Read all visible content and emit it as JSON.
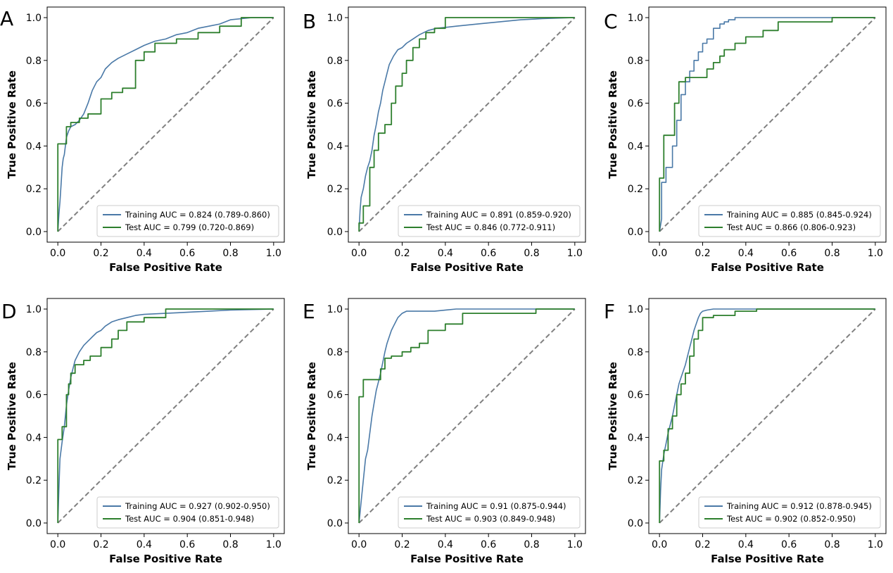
{
  "colors": {
    "training": "#4a79a7",
    "test": "#2d7f2d",
    "diagonal": "#808080",
    "frame": "#000000",
    "legend_border": "#cccccc"
  },
  "chart_data": [
    {
      "type": "line",
      "panel_label": "A",
      "xlabel": "False Positive Rate",
      "ylabel": "True Positive Rate",
      "xlim": [
        0,
        1
      ],
      "ylim": [
        0,
        1
      ],
      "xticks": [
        "0.0",
        "0.2",
        "0.4",
        "0.6",
        "0.8",
        "1.0"
      ],
      "yticks": [
        "0.0",
        "0.2",
        "0.4",
        "0.6",
        "0.8",
        "1.0"
      ],
      "legend_position": "lower-right",
      "series": [
        {
          "name": "Training AUC = 0.824 (0.789-0.860)",
          "role": "training",
          "x": [
            0,
            0.005,
            0.01,
            0.015,
            0.02,
            0.025,
            0.03,
            0.04,
            0.05,
            0.06,
            0.08,
            0.1,
            0.12,
            0.14,
            0.16,
            0.18,
            0.2,
            0.22,
            0.25,
            0.28,
            0.32,
            0.36,
            0.4,
            0.45,
            0.5,
            0.55,
            0.6,
            0.65,
            0.7,
            0.75,
            0.8,
            0.9,
            1.0
          ],
          "y": [
            0,
            0.08,
            0.14,
            0.22,
            0.3,
            0.34,
            0.36,
            0.44,
            0.47,
            0.49,
            0.5,
            0.52,
            0.55,
            0.6,
            0.66,
            0.7,
            0.72,
            0.76,
            0.79,
            0.81,
            0.83,
            0.85,
            0.87,
            0.89,
            0.9,
            0.92,
            0.93,
            0.95,
            0.96,
            0.97,
            0.99,
            1.0,
            1.0
          ]
        },
        {
          "name": "Test AUC = 0.799 (0.720-0.869)",
          "role": "test",
          "x": [
            0,
            0,
            0.04,
            0.04,
            0.06,
            0.06,
            0.1,
            0.1,
            0.14,
            0.14,
            0.2,
            0.2,
            0.25,
            0.25,
            0.3,
            0.3,
            0.36,
            0.36,
            0.4,
            0.4,
            0.45,
            0.45,
            0.55,
            0.55,
            0.65,
            0.65,
            0.75,
            0.75,
            0.85,
            0.85,
            1.0
          ],
          "y": [
            0,
            0.41,
            0.41,
            0.49,
            0.49,
            0.51,
            0.51,
            0.53,
            0.53,
            0.55,
            0.55,
            0.62,
            0.62,
            0.65,
            0.65,
            0.67,
            0.67,
            0.8,
            0.8,
            0.84,
            0.84,
            0.88,
            0.88,
            0.9,
            0.9,
            0.93,
            0.93,
            0.96,
            0.96,
            1.0,
            1.0
          ]
        }
      ]
    },
    {
      "type": "line",
      "panel_label": "B",
      "xlabel": "False Positive Rate",
      "ylabel": "True Positive Rate",
      "xlim": [
        0,
        1
      ],
      "ylim": [
        0,
        1
      ],
      "xticks": [
        "0.0",
        "0.2",
        "0.4",
        "0.6",
        "0.8",
        "1.0"
      ],
      "yticks": [
        "0.0",
        "0.2",
        "0.4",
        "0.6",
        "0.8",
        "1.0"
      ],
      "legend_position": "lower-right",
      "series": [
        {
          "name": "Training AUC = 0.891 (0.859-0.920)",
          "role": "training",
          "x": [
            0,
            0.005,
            0.01,
            0.02,
            0.03,
            0.04,
            0.05,
            0.06,
            0.07,
            0.08,
            0.09,
            0.1,
            0.11,
            0.12,
            0.13,
            0.14,
            0.16,
            0.18,
            0.2,
            0.22,
            0.25,
            0.28,
            0.32,
            0.36,
            0.45,
            0.55,
            0.65,
            0.75,
            0.85,
            1.0
          ],
          "y": [
            0,
            0.1,
            0.16,
            0.2,
            0.26,
            0.3,
            0.33,
            0.38,
            0.45,
            0.5,
            0.56,
            0.6,
            0.66,
            0.7,
            0.74,
            0.78,
            0.82,
            0.85,
            0.86,
            0.88,
            0.9,
            0.92,
            0.94,
            0.95,
            0.96,
            0.97,
            0.98,
            0.99,
            0.995,
            1.0
          ]
        },
        {
          "name": "Test AUC = 0.846 (0.772-0.911)",
          "role": "test",
          "x": [
            0,
            0,
            0.02,
            0.02,
            0.05,
            0.05,
            0.07,
            0.07,
            0.09,
            0.09,
            0.12,
            0.12,
            0.15,
            0.15,
            0.17,
            0.17,
            0.2,
            0.2,
            0.22,
            0.22,
            0.25,
            0.25,
            0.28,
            0.28,
            0.31,
            0.31,
            0.35,
            0.35,
            0.4,
            0.4,
            1.0
          ],
          "y": [
            0,
            0.04,
            0.04,
            0.12,
            0.12,
            0.3,
            0.3,
            0.38,
            0.38,
            0.46,
            0.46,
            0.5,
            0.5,
            0.6,
            0.6,
            0.68,
            0.68,
            0.74,
            0.74,
            0.8,
            0.8,
            0.86,
            0.86,
            0.9,
            0.9,
            0.93,
            0.93,
            0.95,
            0.95,
            1.0,
            1.0
          ]
        }
      ]
    },
    {
      "type": "line",
      "panel_label": "C",
      "xlabel": "False Positive Rate",
      "ylabel": "True Positive Rate",
      "xlim": [
        0,
        1
      ],
      "ylim": [
        0,
        1
      ],
      "xticks": [
        "0.0",
        "0.2",
        "0.4",
        "0.6",
        "0.8",
        "1.0"
      ],
      "yticks": [
        "0.0",
        "0.2",
        "0.4",
        "0.6",
        "0.8",
        "1.0"
      ],
      "legend_position": "lower-right",
      "series": [
        {
          "name": "Training AUC = 0.885 (0.845-0.924)",
          "role": "training",
          "x": [
            0,
            0.01,
            0.01,
            0.03,
            0.03,
            0.06,
            0.06,
            0.08,
            0.08,
            0.1,
            0.1,
            0.12,
            0.12,
            0.14,
            0.14,
            0.16,
            0.16,
            0.18,
            0.18,
            0.2,
            0.2,
            0.22,
            0.22,
            0.25,
            0.25,
            0.28,
            0.28,
            0.3,
            0.3,
            0.32,
            0.32,
            0.35,
            0.35,
            1.0
          ],
          "y": [
            0,
            0.06,
            0.23,
            0.23,
            0.3,
            0.3,
            0.4,
            0.4,
            0.52,
            0.52,
            0.64,
            0.64,
            0.7,
            0.7,
            0.75,
            0.75,
            0.8,
            0.8,
            0.84,
            0.84,
            0.88,
            0.88,
            0.9,
            0.9,
            0.95,
            0.95,
            0.97,
            0.97,
            0.98,
            0.98,
            0.99,
            0.99,
            1.0,
            1.0
          ]
        },
        {
          "name": "Test AUC = 0.866 (0.806-0.923)",
          "role": "test",
          "x": [
            0,
            0,
            0.02,
            0.02,
            0.07,
            0.07,
            0.09,
            0.09,
            0.12,
            0.12,
            0.22,
            0.22,
            0.25,
            0.25,
            0.28,
            0.28,
            0.3,
            0.3,
            0.35,
            0.35,
            0.4,
            0.4,
            0.48,
            0.48,
            0.55,
            0.55,
            0.8,
            0.8,
            1.0
          ],
          "y": [
            0,
            0.25,
            0.25,
            0.45,
            0.45,
            0.6,
            0.6,
            0.7,
            0.7,
            0.72,
            0.72,
            0.76,
            0.76,
            0.79,
            0.79,
            0.82,
            0.82,
            0.85,
            0.85,
            0.88,
            0.88,
            0.91,
            0.91,
            0.94,
            0.94,
            0.98,
            0.98,
            1.0,
            1.0
          ]
        }
      ]
    },
    {
      "type": "line",
      "panel_label": "D",
      "xlabel": "False Positive Rate",
      "ylabel": "True Positive Rate",
      "xlim": [
        0,
        1
      ],
      "ylim": [
        0,
        1
      ],
      "xticks": [
        "0.0",
        "0.2",
        "0.4",
        "0.6",
        "0.8",
        "1.0"
      ],
      "yticks": [
        "0.0",
        "0.2",
        "0.4",
        "0.6",
        "0.8",
        "1.0"
      ],
      "legend_position": "lower-right",
      "series": [
        {
          "name": "Training AUC = 0.927 (0.902-0.950)",
          "role": "training",
          "x": [
            0,
            0.005,
            0.01,
            0.02,
            0.03,
            0.04,
            0.05,
            0.06,
            0.07,
            0.08,
            0.1,
            0.12,
            0.14,
            0.16,
            0.18,
            0.2,
            0.22,
            0.25,
            0.28,
            0.32,
            0.36,
            0.4,
            0.5,
            0.6,
            0.7,
            0.8,
            1.0
          ],
          "y": [
            0,
            0.16,
            0.3,
            0.38,
            0.45,
            0.55,
            0.62,
            0.68,
            0.72,
            0.76,
            0.8,
            0.83,
            0.85,
            0.87,
            0.89,
            0.9,
            0.92,
            0.94,
            0.95,
            0.96,
            0.97,
            0.975,
            0.98,
            0.985,
            0.99,
            0.995,
            1.0
          ]
        },
        {
          "name": "Test AUC = 0.904 (0.851-0.948)",
          "role": "test",
          "x": [
            0,
            0,
            0.02,
            0.02,
            0.04,
            0.04,
            0.05,
            0.05,
            0.06,
            0.06,
            0.08,
            0.08,
            0.12,
            0.12,
            0.15,
            0.15,
            0.2,
            0.2,
            0.25,
            0.25,
            0.28,
            0.28,
            0.32,
            0.32,
            0.4,
            0.4,
            0.5,
            0.5,
            1.0
          ],
          "y": [
            0,
            0.39,
            0.39,
            0.45,
            0.45,
            0.6,
            0.6,
            0.65,
            0.65,
            0.7,
            0.7,
            0.74,
            0.74,
            0.76,
            0.76,
            0.78,
            0.78,
            0.82,
            0.82,
            0.86,
            0.86,
            0.9,
            0.9,
            0.94,
            0.94,
            0.96,
            0.96,
            1.0,
            1.0
          ]
        }
      ]
    },
    {
      "type": "line",
      "panel_label": "E",
      "xlabel": "False Positive Rate",
      "ylabel": "True Positive Rate",
      "xlim": [
        0,
        1
      ],
      "ylim": [
        0,
        1
      ],
      "xticks": [
        "0.0",
        "0.2",
        "0.4",
        "0.6",
        "0.8",
        "1.0"
      ],
      "yticks": [
        "0.0",
        "0.2",
        "0.4",
        "0.6",
        "0.8",
        "1.0"
      ],
      "legend_position": "lower-right",
      "series": [
        {
          "name": "Training AUC = 0.91 (0.875-0.944)",
          "role": "training",
          "x": [
            0,
            0.01,
            0.02,
            0.03,
            0.04,
            0.05,
            0.06,
            0.07,
            0.08,
            0.09,
            0.1,
            0.11,
            0.12,
            0.13,
            0.14,
            0.15,
            0.16,
            0.17,
            0.18,
            0.2,
            0.22,
            0.25,
            0.3,
            0.35,
            0.45,
            0.6,
            0.8,
            1.0
          ],
          "y": [
            0,
            0.1,
            0.2,
            0.3,
            0.34,
            0.42,
            0.5,
            0.56,
            0.62,
            0.66,
            0.7,
            0.75,
            0.8,
            0.84,
            0.87,
            0.9,
            0.92,
            0.94,
            0.96,
            0.98,
            0.99,
            0.99,
            0.99,
            0.99,
            1.0,
            1.0,
            1.0,
            1.0
          ]
        },
        {
          "name": "Test AUC = 0.903 (0.849-0.948)",
          "role": "test",
          "x": [
            0,
            0,
            0.02,
            0.02,
            0.1,
            0.1,
            0.12,
            0.12,
            0.15,
            0.15,
            0.2,
            0.2,
            0.24,
            0.24,
            0.28,
            0.28,
            0.32,
            0.32,
            0.4,
            0.4,
            0.48,
            0.48,
            0.82,
            0.82,
            1.0
          ],
          "y": [
            0,
            0.59,
            0.59,
            0.67,
            0.67,
            0.72,
            0.72,
            0.77,
            0.77,
            0.78,
            0.78,
            0.8,
            0.8,
            0.82,
            0.82,
            0.84,
            0.84,
            0.9,
            0.9,
            0.93,
            0.93,
            0.98,
            0.98,
            1.0,
            1.0
          ]
        }
      ]
    },
    {
      "type": "line",
      "panel_label": "F",
      "xlabel": "False Positive Rate",
      "ylabel": "True Positive Rate",
      "xlim": [
        0,
        1
      ],
      "ylim": [
        0,
        1
      ],
      "xticks": [
        "0.0",
        "0.2",
        "0.4",
        "0.6",
        "0.8",
        "1.0"
      ],
      "yticks": [
        "0.0",
        "0.2",
        "0.4",
        "0.6",
        "0.8",
        "1.0"
      ],
      "legend_position": "lower-right",
      "series": [
        {
          "name": "Training AUC = 0.912 (0.878-0.945)",
          "role": "training",
          "x": [
            0,
            0.005,
            0.01,
            0.02,
            0.03,
            0.04,
            0.05,
            0.06,
            0.07,
            0.08,
            0.09,
            0.1,
            0.11,
            0.12,
            0.13,
            0.14,
            0.15,
            0.16,
            0.17,
            0.18,
            0.19,
            0.2,
            0.22,
            0.25,
            0.3,
            0.35,
            0.45,
            1.0
          ],
          "y": [
            0,
            0.15,
            0.25,
            0.32,
            0.37,
            0.42,
            0.46,
            0.5,
            0.55,
            0.6,
            0.65,
            0.68,
            0.71,
            0.74,
            0.78,
            0.82,
            0.86,
            0.9,
            0.93,
            0.96,
            0.98,
            0.99,
            0.995,
            1.0,
            1.0,
            1.0,
            1.0,
            1.0
          ]
        },
        {
          "name": "Test AUC = 0.902 (0.852-0.950)",
          "role": "test",
          "x": [
            0,
            0,
            0.02,
            0.02,
            0.04,
            0.04,
            0.06,
            0.06,
            0.08,
            0.08,
            0.1,
            0.1,
            0.12,
            0.12,
            0.14,
            0.14,
            0.16,
            0.16,
            0.18,
            0.18,
            0.2,
            0.2,
            0.25,
            0.25,
            0.35,
            0.35,
            0.45,
            0.45,
            1.0
          ],
          "y": [
            0,
            0.29,
            0.29,
            0.34,
            0.34,
            0.44,
            0.44,
            0.5,
            0.5,
            0.6,
            0.6,
            0.65,
            0.65,
            0.7,
            0.7,
            0.78,
            0.78,
            0.86,
            0.86,
            0.9,
            0.9,
            0.96,
            0.96,
            0.97,
            0.97,
            0.99,
            0.99,
            1.0,
            1.0
          ]
        }
      ]
    }
  ]
}
